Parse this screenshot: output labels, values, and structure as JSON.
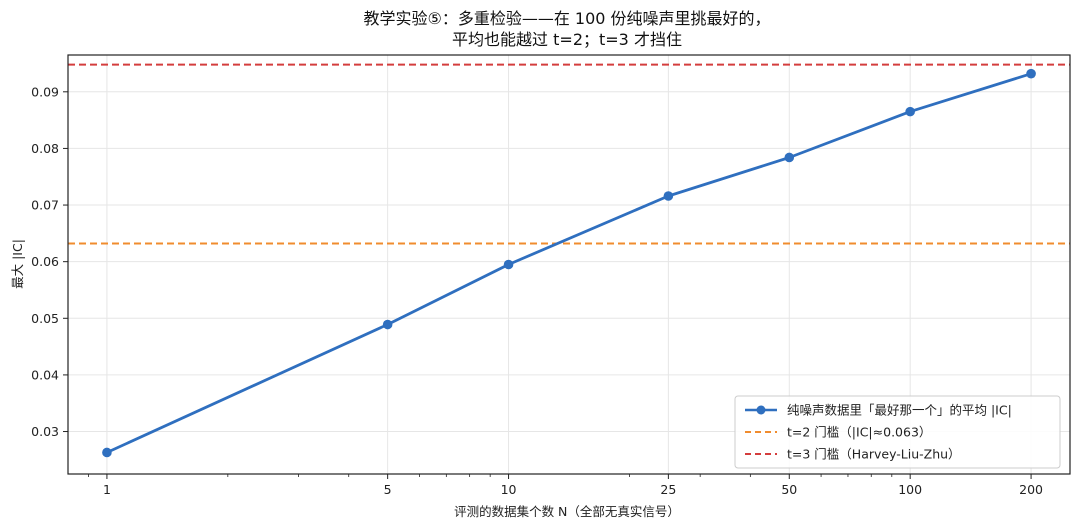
{
  "chart_data": {
    "type": "line",
    "title_lines": [
      "教学实验⑤：多重检验——在 100 份纯噪声里挑最好的，",
      "平均也能越过 t=2；t=3 才挡住"
    ],
    "xlabel": "评测的数据集个数 N（全部无真实信号）",
    "ylabel": "最大 |IC|",
    "x_scale": "log",
    "xlim": [
      0.8,
      250
    ],
    "ylim": [
      0.0225,
      0.0965
    ],
    "x_ticks": [
      1,
      5,
      10,
      25,
      50,
      100,
      200
    ],
    "x_tick_labels": [
      "1",
      "5",
      "10",
      "25",
      "50",
      "100",
      "200"
    ],
    "y_ticks": [
      0.03,
      0.04,
      0.05,
      0.06,
      0.07,
      0.08,
      0.09
    ],
    "y_tick_labels": [
      "0.03",
      "0.04",
      "0.05",
      "0.06",
      "0.07",
      "0.08",
      "0.09"
    ],
    "grid": true,
    "legend_position": "lower-right",
    "series": [
      {
        "name": "纯噪声数据里「最好那一个」的平均 |IC|",
        "x": [
          1,
          5,
          10,
          25,
          50,
          100,
          200
        ],
        "y": [
          0.0263,
          0.0489,
          0.0595,
          0.0716,
          0.0784,
          0.0865,
          0.0932
        ],
        "color": "#2f6fbf",
        "style": "solid-marker"
      }
    ],
    "hlines": [
      {
        "name": "t=2 门槛（|IC|≈0.063）",
        "y": 0.0632,
        "color": "#f08c2e",
        "style": "dashed"
      },
      {
        "name": "t=3 门槛（Harvey-Liu-Zhu）",
        "y": 0.0948,
        "color": "#d43d3d",
        "style": "dashed"
      }
    ]
  }
}
